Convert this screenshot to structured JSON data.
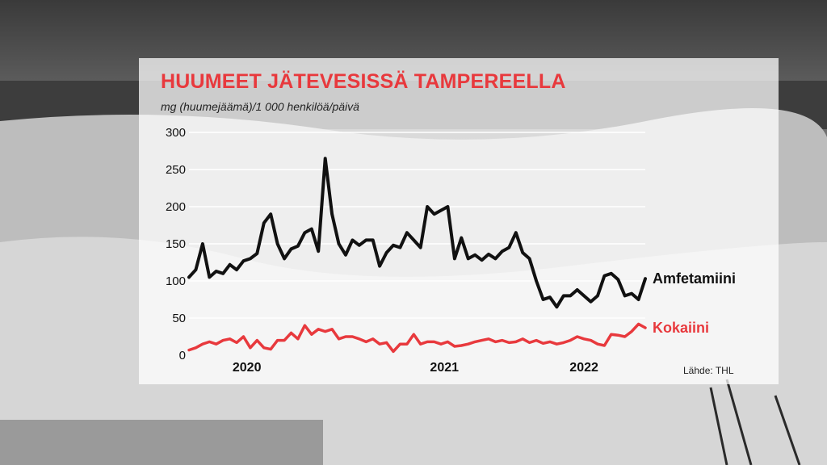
{
  "title": "HUUMEET JÄTEVESISSÄ TAMPEREELLA",
  "subtitle": "mg (huumejäämä)/1 000 henkilöä/päivä",
  "source": "Lähde: THL",
  "colors": {
    "accent": "#e8393d",
    "line_amf": "#111111",
    "panel": "#ffffff"
  },
  "chart_data": {
    "type": "line",
    "ylim": [
      0,
      300
    ],
    "yticks": [
      0,
      50,
      100,
      150,
      200,
      250,
      300
    ],
    "grid": true,
    "x_ticks": [
      {
        "label": "2020",
        "x": 8.5
      },
      {
        "label": "2021",
        "x": 37.5
      },
      {
        "label": "2022",
        "x": 58
      }
    ],
    "series": [
      {
        "name": "Amfetamiini",
        "color": "#111111",
        "values": [
          105,
          115,
          150,
          105,
          113,
          110,
          122,
          115,
          127,
          130,
          137,
          178,
          190,
          150,
          130,
          143,
          147,
          165,
          170,
          140,
          265,
          190,
          150,
          135,
          155,
          148,
          155,
          155,
          120,
          138,
          148,
          145,
          165,
          155,
          145,
          200,
          190,
          195,
          200,
          130,
          158,
          130,
          135,
          128,
          136,
          130,
          140,
          145,
          165,
          138,
          130,
          100,
          75,
          78,
          65,
          80,
          80,
          88,
          80,
          72,
          80,
          107,
          110,
          102,
          80,
          83,
          75,
          103
        ],
        "label_value": 103
      },
      {
        "name": "Kokaiini",
        "color": "#e8393d",
        "values": [
          7,
          10,
          15,
          18,
          15,
          20,
          22,
          17,
          25,
          10,
          20,
          10,
          8,
          20,
          20,
          30,
          22,
          40,
          28,
          35,
          32,
          35,
          22,
          25,
          25,
          22,
          18,
          22,
          15,
          17,
          5,
          15,
          15,
          28,
          15,
          18,
          18,
          15,
          18,
          12,
          13,
          15,
          18,
          20,
          22,
          18,
          20,
          17,
          18,
          22,
          17,
          20,
          16,
          18,
          15,
          17,
          20,
          25,
          22,
          20,
          15,
          13,
          28,
          27,
          25,
          32,
          42,
          37
        ],
        "label_value": 37
      }
    ]
  }
}
